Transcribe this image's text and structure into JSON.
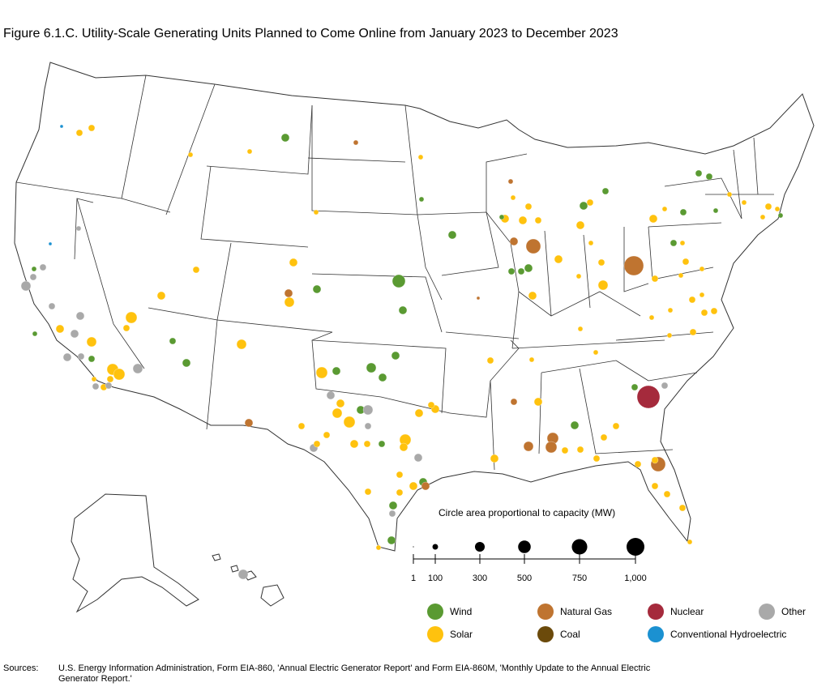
{
  "title": "Figure 6.1.C. Utility-Scale Generating Units Planned to Come Online from January 2023 to December 2023",
  "size_legend": {
    "title": "Circle area proportional to capacity (MW)",
    "ticks": [
      {
        "label": "1",
        "value": 1
      },
      {
        "label": "100",
        "value": 100
      },
      {
        "label": "300",
        "value": 300
      },
      {
        "label": "500",
        "value": 500
      },
      {
        "label": "750",
        "value": 750
      },
      {
        "label": "1,000",
        "value": 1000
      }
    ]
  },
  "legend": [
    {
      "label": "Wind",
      "color": "#5a9a32"
    },
    {
      "label": "Natural Gas",
      "color": "#bf7430"
    },
    {
      "label": "Nuclear",
      "color": "#a52a3c"
    },
    {
      "label": "Other",
      "color": "#a9a9a9"
    },
    {
      "label": "Solar",
      "color": "#ffc20e"
    },
    {
      "label": "Coal",
      "color": "#6b4a0b"
    },
    {
      "label": "Conventional Hydroelectric",
      "color": "#1b91d1"
    }
  ],
  "sources": {
    "label": "Sources:",
    "text": "U.S. Energy Information Administration, Form EIA-860, 'Annual Electric Generator Report' and Form EIA-860M, 'Monthly Update to the Annual Electric Generator Report.'"
  },
  "colors": {
    "state_border": "#333333",
    "land": "#ffffff"
  }
}
